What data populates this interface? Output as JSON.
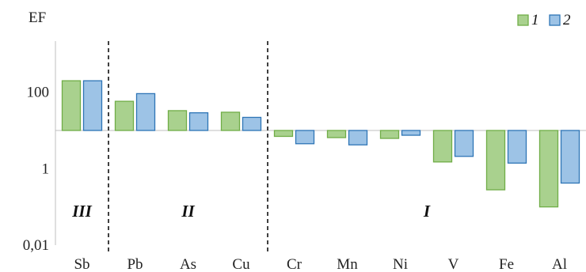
{
  "chart_data": {
    "type": "bar",
    "ylabel": "EF",
    "yscale": "log",
    "ylim": [
      0.01,
      10000
    ],
    "baseline": 10,
    "yticks": [
      "0,01",
      "1",
      "100"
    ],
    "categories": [
      "Sb",
      "Pb",
      "As",
      "Cu",
      "Cr",
      "Mn",
      "Ni",
      "V",
      "Fe",
      "Al"
    ],
    "series": [
      {
        "name": "1",
        "color": "#a9d18e",
        "stroke": "#70ad47",
        "values": [
          200,
          58,
          33,
          30,
          7,
          6.5,
          6.2,
          1.5,
          0.28,
          0.1
        ]
      },
      {
        "name": "2",
        "color": "#9dc3e6",
        "stroke": "#2e75b6",
        "values": [
          200,
          92,
          29,
          22,
          4.5,
          4.2,
          7.5,
          2.1,
          1.4,
          0.42
        ]
      }
    ],
    "groups": [
      {
        "label": "III",
        "from": 0,
        "to": 0
      },
      {
        "label": "II",
        "from": 1,
        "to": 3
      },
      {
        "label": "I",
        "from": 4,
        "to": 9
      }
    ],
    "dividers_after": [
      0,
      3
    ]
  }
}
